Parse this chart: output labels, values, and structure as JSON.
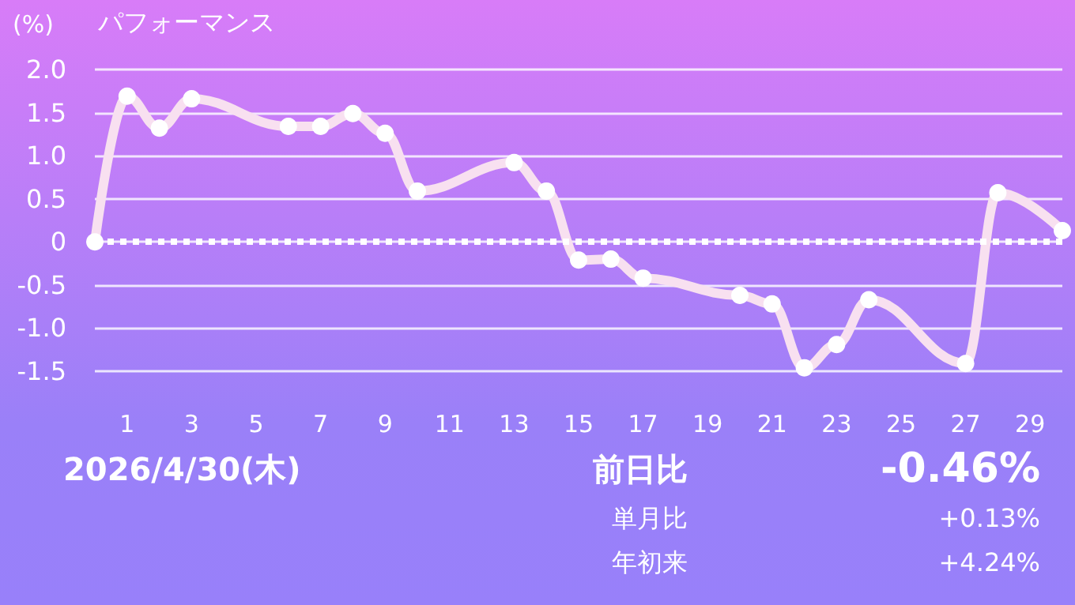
{
  "chart_data": {
    "type": "line",
    "title": "パフォーマンス",
    "ylabel": "(%)",
    "x": [
      0,
      1,
      2,
      3,
      6,
      7,
      8,
      9,
      10,
      13,
      14,
      15,
      16,
      17,
      20,
      21,
      22,
      23,
      24,
      27,
      28,
      30
    ],
    "series": [
      {
        "color": "#f8e0f0",
        "values": [
          0,
          1.69,
          1.32,
          1.66,
          1.34,
          1.34,
          1.49,
          1.26,
          0.59,
          0.92,
          0.59,
          -0.21,
          -0.2,
          -0.42,
          -0.62,
          -0.72,
          -1.46,
          -1.19,
          -0.67,
          -1.41,
          0.57,
          0.13
        ]
      }
    ],
    "xlim": [
      0,
      30
    ],
    "xticks": [
      1,
      3,
      5,
      7,
      9,
      11,
      13,
      15,
      17,
      19,
      21,
      23,
      25,
      27,
      29
    ],
    "ylim": [
      -1.5,
      2
    ],
    "yticks": [
      {
        "value": -1.5,
        "label": "-1.5"
      },
      {
        "value": -1,
        "label": "-1.0"
      },
      {
        "value": -0.5,
        "label": "-0.5"
      },
      {
        "value": 0,
        "label": "0"
      },
      {
        "value": 0.5,
        "label": "0.5"
      },
      {
        "value": 1,
        "label": "1.0"
      },
      {
        "value": 1.5,
        "label": "1.5"
      },
      {
        "value": 2,
        "label": "2.0"
      }
    ],
    "grid": "y",
    "marker": "circle",
    "line_style": "solid",
    "ref_lines": [
      {
        "axis": "y",
        "value": 0,
        "color": "#ffffff",
        "line_style": "dotted"
      }
    ],
    "annotations": [
      "2026/4/30(木)",
      "前日比",
      "-0.46%",
      "単月比",
      "+0.13%",
      "年初来",
      "+4.24%"
    ]
  }
}
